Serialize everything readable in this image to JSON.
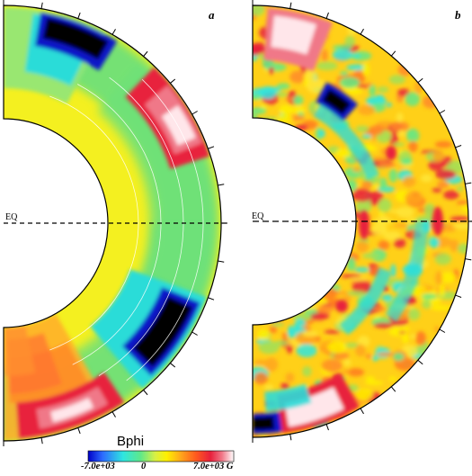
{
  "panels": [
    {
      "id": "a",
      "label": "a",
      "equator_label": "EQ"
    },
    {
      "id": "b",
      "label": "b",
      "equator_label": "EQ"
    }
  ],
  "colorbar": {
    "title": "Bphi",
    "min_label": "-7.0e+03",
    "mid_label": "0",
    "max_label": "7.0e+03 G",
    "min": -7000,
    "max": 7000,
    "colors": [
      "#0000c8",
      "#2d6cff",
      "#2ee6e0",
      "#5fe88a",
      "#d8f045",
      "#fff000",
      "#ffa41c",
      "#ff5a1e",
      "#e8203c",
      "#f07888",
      "#ffd2d8",
      "#ffffff"
    ]
  },
  "colors": {
    "black_core": "#000000",
    "strong_negative": "#0a14c8",
    "negative": "#2bdcd8",
    "weak_negative": "#6ee07a",
    "zero": "#f4f020",
    "positive": "#ff8a28",
    "strong_positive": "#e8203c",
    "extreme_positive": "#ffe6ea"
  }
}
